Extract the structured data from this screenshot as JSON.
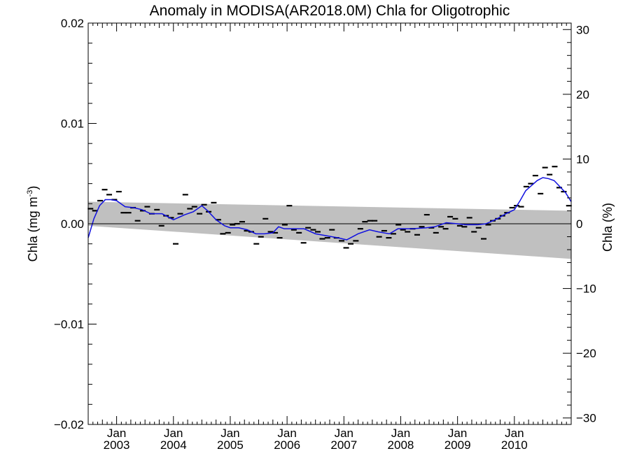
{
  "chart_data": {
    "type": "line",
    "title": "Anomaly in MODISA(AR2018.0M) Chla for Oligotrophic",
    "ylabel": "Chla (mg m",
    "ylabel_sup": "-3",
    "ylabel_close": ")",
    "y2label": "Chla (%)",
    "ylim": [
      -0.02,
      0.02
    ],
    "y2lim": [
      -31.0,
      31.0
    ],
    "xlim": [
      2002.5,
      2011.0
    ],
    "y_ticks": [
      {
        "value": 0.02,
        "label": "0.02"
      },
      {
        "value": 0.01,
        "label": "0.01"
      },
      {
        "value": 0.0,
        "label": "0.00"
      },
      {
        "value": -0.01,
        "label": "−0.01"
      },
      {
        "value": -0.02,
        "label": "−0.02"
      }
    ],
    "y2_ticks": [
      {
        "value": 30,
        "label": "30"
      },
      {
        "value": 20,
        "label": "20"
      },
      {
        "value": 10,
        "label": "10"
      },
      {
        "value": 0,
        "label": "0"
      },
      {
        "value": -10,
        "label": "−10"
      },
      {
        "value": -20,
        "label": "−20"
      },
      {
        "value": -30,
        "label": "−30"
      }
    ],
    "x_ticks": [
      {
        "value": 2003.0,
        "month": "Jan",
        "year": "2003"
      },
      {
        "value": 2004.0,
        "month": "Jan",
        "year": "2004"
      },
      {
        "value": 2005.0,
        "month": "Jan",
        "year": "2005"
      },
      {
        "value": 2006.0,
        "month": "Jan",
        "year": "2006"
      },
      {
        "value": 2007.0,
        "month": "Jan",
        "year": "2007"
      },
      {
        "value": 2008.0,
        "month": "Jan",
        "year": "2008"
      },
      {
        "value": 2009.0,
        "month": "Jan",
        "year": "2009"
      },
      {
        "value": 2010.0,
        "month": "Jan",
        "year": "2010"
      }
    ],
    "band": {
      "start": [
        2002.5,
        0.0022,
        -0.0002
      ],
      "end": [
        2011.0,
        0.0013,
        -0.0035
      ],
      "color": "#c0c0c0"
    },
    "zero_line": true,
    "grid": false,
    "colors": {
      "smoothed": "#1010e0",
      "monthly": "#000000",
      "band": "#c0c0c0"
    },
    "monthly": {
      "x": [
        2002.54,
        2002.62,
        2002.71,
        2002.79,
        2002.87,
        2002.96,
        2003.04,
        2003.12,
        2003.21,
        2003.29,
        2003.37,
        2003.46,
        2003.54,
        2003.62,
        2003.71,
        2003.79,
        2003.87,
        2003.96,
        2004.04,
        2004.12,
        2004.21,
        2004.29,
        2004.37,
        2004.46,
        2004.54,
        2004.62,
        2004.71,
        2004.79,
        2004.87,
        2004.96,
        2005.04,
        2005.12,
        2005.21,
        2005.29,
        2005.37,
        2005.46,
        2005.54,
        2005.62,
        2005.71,
        2005.79,
        2005.87,
        2005.96,
        2006.04,
        2006.12,
        2006.21,
        2006.29,
        2006.37,
        2006.46,
        2006.54,
        2006.62,
        2006.71,
        2006.79,
        2006.87,
        2006.96,
        2007.04,
        2007.12,
        2007.21,
        2007.29,
        2007.37,
        2007.46,
        2007.54,
        2007.62,
        2007.71,
        2007.79,
        2007.87,
        2007.96,
        2008.04,
        2008.12,
        2008.21,
        2008.29,
        2008.37,
        2008.46,
        2008.54,
        2008.62,
        2008.71,
        2008.79,
        2008.87,
        2008.96,
        2009.04,
        2009.12,
        2009.21,
        2009.29,
        2009.37,
        2009.46,
        2009.54,
        2009.62,
        2009.71,
        2009.79,
        2009.87,
        2009.96,
        2010.04,
        2010.12,
        2010.21,
        2010.29,
        2010.37,
        2010.46,
        2010.54,
        2010.62,
        2010.71,
        2010.79,
        2010.87,
        2010.96
      ],
      "y": [
        0.0015,
        0.0013,
        0.0023,
        0.0034,
        0.0029,
        0.0024,
        0.0032,
        0.0011,
        0.0011,
        0.0016,
        0.0003,
        0.0013,
        0.0017,
        0.001,
        0.0014,
        -0.0002,
        0.0008,
        0.0006,
        -0.002,
        0.001,
        0.0029,
        0.0015,
        0.0017,
        0.001,
        0.0019,
        0.0012,
        0.0021,
        0.0004,
        -0.001,
        -0.0009,
        -0.0001,
        0.0,
        0.0002,
        -0.0007,
        -0.0008,
        -0.002,
        -0.0013,
        0.0005,
        -0.0008,
        -0.0009,
        -0.0014,
        -0.0001,
        0.0018,
        -0.0006,
        -0.0009,
        -0.0019,
        -0.0004,
        -0.0006,
        -0.0008,
        -0.0015,
        -0.0014,
        -0.0006,
        -0.0014,
        -0.0017,
        -0.0024,
        -0.002,
        -0.0017,
        -0.0005,
        0.0002,
        0.0003,
        0.0003,
        -0.0013,
        -0.0007,
        -0.0014,
        -0.001,
        -0.0001,
        -0.0006,
        -0.0008,
        -0.0005,
        -0.0011,
        -0.0003,
        0.0009,
        -0.0004,
        -0.0009,
        -0.0003,
        -0.0005,
        0.0007,
        0.0005,
        -0.0002,
        -0.0003,
        0.0006,
        -0.0008,
        -0.0004,
        -0.0015,
        -0.0001,
        0.0003,
        0.0005,
        0.0008,
        0.0011,
        0.0016,
        0.0018,
        0.0017,
        0.0037,
        0.004,
        0.0048,
        0.003,
        0.0056,
        0.0049,
        0.0057,
        0.0036,
        0.0032,
        0.0018
      ]
    },
    "smoothed": {
      "x": [
        2002.5,
        2002.6,
        2002.7,
        2002.8,
        2002.9,
        2003.0,
        2003.15,
        2003.3,
        2003.45,
        2003.6,
        2003.8,
        2004.0,
        2004.2,
        2004.35,
        2004.5,
        2004.6,
        2004.75,
        2004.9,
        2005.0,
        2005.15,
        2005.3,
        2005.45,
        2005.6,
        2005.75,
        2005.85,
        2005.95,
        2006.1,
        2006.3,
        2006.5,
        2006.7,
        2006.9,
        2007.05,
        2007.25,
        2007.45,
        2007.6,
        2007.8,
        2007.95,
        2008.2,
        2008.45,
        2008.6,
        2008.8,
        2009.0,
        2009.15,
        2009.35,
        2009.5,
        2009.7,
        2009.85,
        2010.0,
        2010.1,
        2010.2,
        2010.3,
        2010.4,
        2010.5,
        2010.6,
        2010.7,
        2010.8,
        2010.9,
        2011.0
      ],
      "y": [
        -0.0014,
        0.0005,
        0.0018,
        0.0024,
        0.0024,
        0.0023,
        0.0017,
        0.0016,
        0.0014,
        0.001,
        0.001,
        0.0004,
        0.0009,
        0.0012,
        0.0018,
        0.0013,
        0.0004,
        -0.0002,
        -0.0004,
        -0.0004,
        -0.0006,
        -0.001,
        -0.001,
        -0.0009,
        -0.0003,
        -0.0005,
        -0.0005,
        -0.0005,
        -0.001,
        -0.0012,
        -0.0014,
        -0.0016,
        -0.001,
        -0.0006,
        -0.0008,
        -0.001,
        -0.0005,
        -0.0005,
        -0.0004,
        -0.0003,
        0.0001,
        0.0,
        -0.0001,
        -0.0001,
        0.0,
        0.0005,
        0.001,
        0.0014,
        0.0023,
        0.0033,
        0.0038,
        0.0043,
        0.0046,
        0.0045,
        0.0043,
        0.0037,
        0.0031,
        0.0022
      ]
    }
  }
}
